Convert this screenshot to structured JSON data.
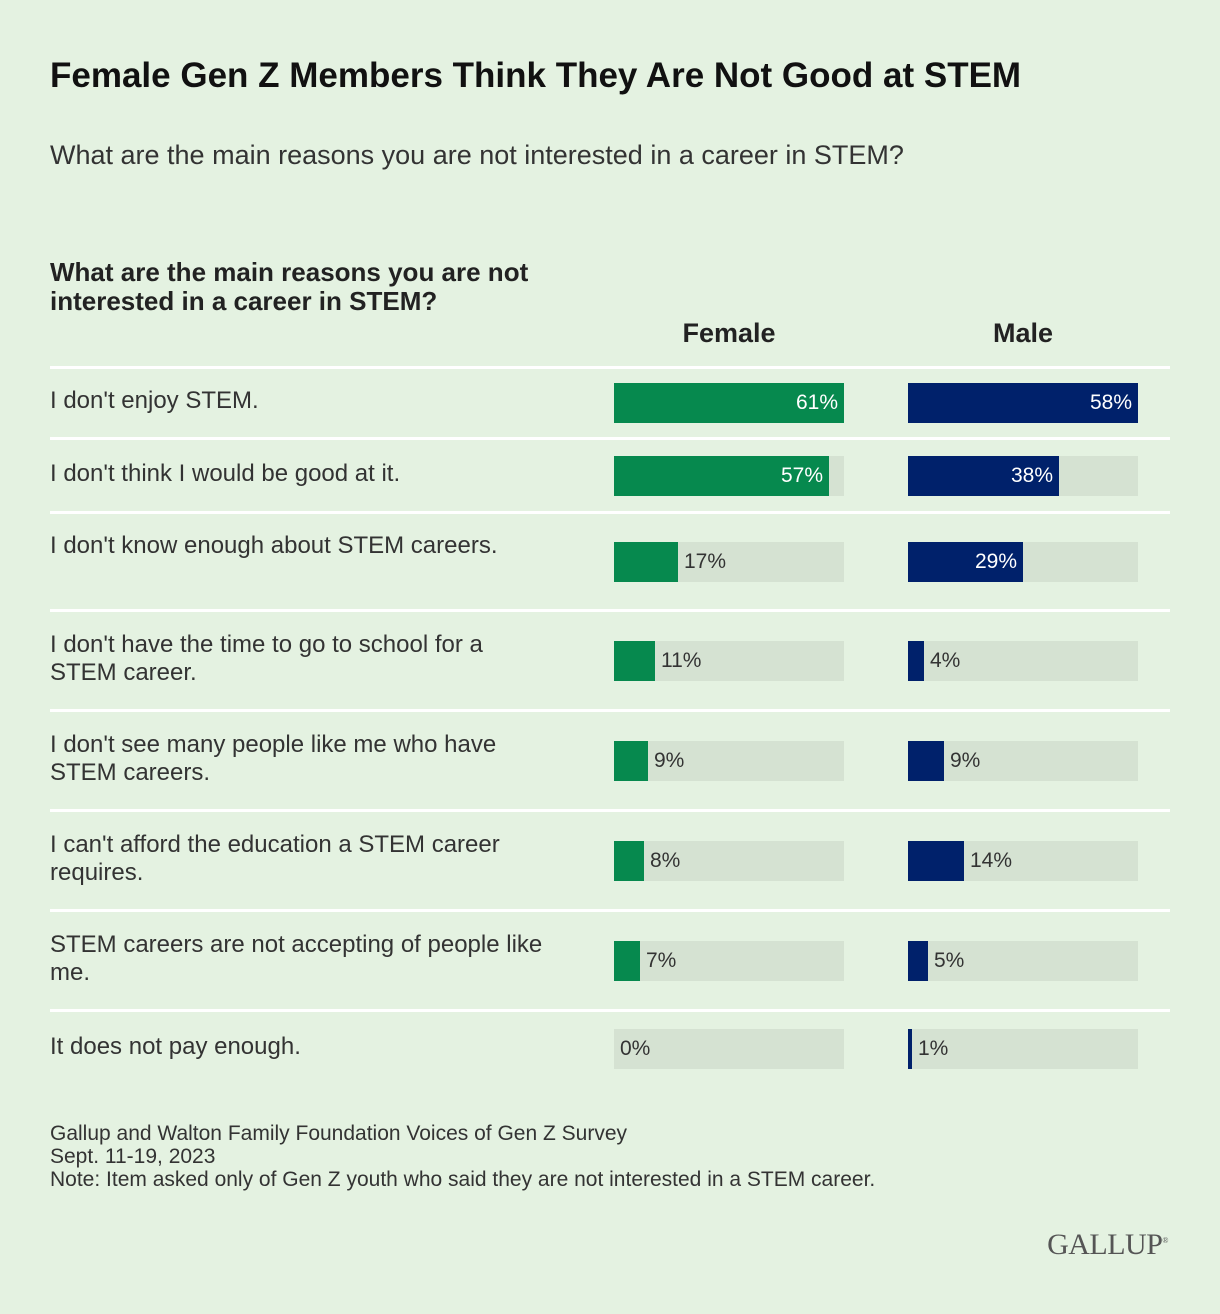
{
  "title": "Female Gen Z Members Think They Are Not Good at STEM",
  "subtitle": "What are the main reasons you are not interested in a career in STEM?",
  "chart_data": {
    "type": "bar",
    "orientation": "horizontal",
    "column_header": "What are the main reasons you are not interested in a career in STEM?",
    "categories": [
      "I don't enjoy STEM.",
      "I don't think I would be good at it.",
      "I don't know enough about STEM careers.",
      "I don't have the time to go to school for a STEM career.",
      "I don't see many people like me who have STEM careers.",
      "I can't afford the education a STEM career requires.",
      "STEM careers are not accepting of people like me.",
      "It does not pay enough."
    ],
    "series": [
      {
        "name": "Female",
        "color": "#06894e",
        "values": [
          61,
          57,
          17,
          11,
          9,
          8,
          7,
          0
        ]
      },
      {
        "name": "Male",
        "color": "#00216b",
        "values": [
          58,
          38,
          29,
          4,
          9,
          14,
          5,
          1
        ]
      }
    ],
    "unit": "%",
    "track_color": "#d5e2d2",
    "background": "#e4f2e1",
    "grid": false
  },
  "footer": {
    "source": "Gallup and Walton Family Foundation Voices of Gen Z Survey",
    "dates": "Sept. 11-19, 2023",
    "note": "Note: Item asked only of Gen Z youth who said they are not interested in a STEM career."
  },
  "logo": "GALLUP"
}
